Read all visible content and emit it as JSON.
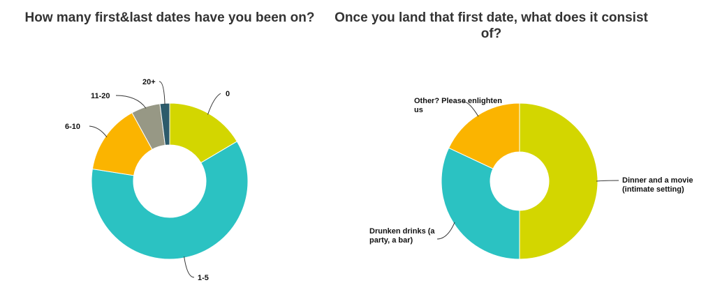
{
  "colors": {
    "lime": "#d3d600",
    "teal": "#2bc2c2",
    "amber": "#fbb400",
    "gray": "#979885",
    "dark_teal": "#2c5b6b",
    "leader": "#333333"
  },
  "chart_data": [
    {
      "type": "pie",
      "variant": "donut",
      "title": "How many first&last dates have you been on?",
      "categories": [
        "0",
        "1-5",
        "6-10",
        "11-20",
        "20+"
      ],
      "values": [
        16.5,
        61,
        14.5,
        6,
        2
      ],
      "colors": [
        "#d3d600",
        "#2bc2c2",
        "#fbb400",
        "#979885",
        "#2c5b6b"
      ],
      "legend": "none"
    },
    {
      "type": "pie",
      "variant": "donut",
      "title": "Once you land that first date, what does it consist of?",
      "categories": [
        "Dinner and a movie (intimate setting)",
        "Drunken drinks (a party, a bar)",
        "Other? Please enlighten us"
      ],
      "values": [
        50,
        32,
        18
      ],
      "colors": [
        "#d3d600",
        "#2bc2c2",
        "#fbb400"
      ],
      "legend": "none"
    }
  ]
}
